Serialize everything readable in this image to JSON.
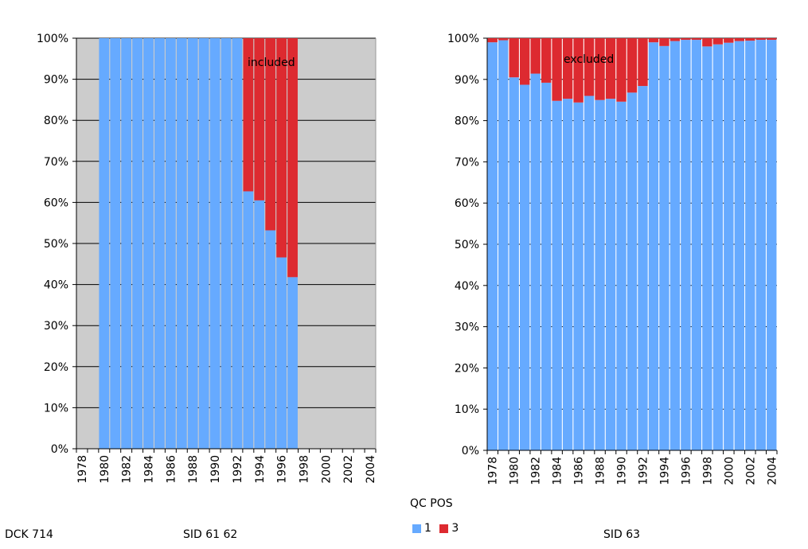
{
  "colors": {
    "qc1": "#66aaff",
    "qc3": "#dd2a30",
    "panel_left_bg": "#cccccc",
    "panel_right_bg": "#ffffff"
  },
  "legend": {
    "title": "QC POS",
    "items": [
      {
        "label": "1",
        "color": "#66aaff"
      },
      {
        "label": "3",
        "color": "#dd2a30"
      }
    ]
  },
  "footer": {
    "left": "DCK 714",
    "mid": "SID 61 62",
    "right": "SID 63"
  },
  "chart_data": [
    {
      "type": "bar",
      "stacked": true,
      "annotation": "included",
      "categories": [
        "1978",
        "1979",
        "1980",
        "1981",
        "1982",
        "1983",
        "1984",
        "1985",
        "1986",
        "1987",
        "1988",
        "1989",
        "1990",
        "1991",
        "1992",
        "1993",
        "1994",
        "1995",
        "1996",
        "1997",
        "1998",
        "1999",
        "2000",
        "2001",
        "2002",
        "2003",
        "2004"
      ],
      "tick_labels": [
        "1978",
        "1980",
        "1982",
        "1984",
        "1986",
        "1988",
        "1990",
        "1992",
        "1994",
        "1996",
        "1998",
        "2000",
        "2002",
        "2004"
      ],
      "y_ticks": [
        "0%",
        "10%",
        "20%",
        "30%",
        "40%",
        "50%",
        "60%",
        "70%",
        "80%",
        "90%",
        "100%"
      ],
      "ylim": [
        0,
        100
      ],
      "grid": true,
      "series": [
        {
          "name": "1",
          "values": [
            0,
            0,
            100,
            100,
            100,
            100,
            100,
            100,
            100,
            100,
            100,
            100,
            100,
            100,
            100,
            62.7,
            60.5,
            53.2,
            46.6,
            41.8,
            0,
            0,
            0,
            0,
            0,
            0,
            0
          ]
        },
        {
          "name": "3",
          "values": [
            0,
            0,
            0,
            0,
            0,
            0,
            0,
            0,
            0,
            0,
            0,
            0,
            0,
            0,
            0,
            37.3,
            39.5,
            46.8,
            53.4,
            58.2,
            0,
            0,
            0,
            0,
            0,
            0,
            0
          ]
        }
      ]
    },
    {
      "type": "bar",
      "stacked": true,
      "annotation": "excluded",
      "categories": [
        "1978",
        "1979",
        "1980",
        "1981",
        "1982",
        "1983",
        "1984",
        "1985",
        "1986",
        "1987",
        "1988",
        "1989",
        "1990",
        "1991",
        "1992",
        "1993",
        "1994",
        "1995",
        "1996",
        "1997",
        "1998",
        "1999",
        "2000",
        "2001",
        "2002",
        "2003",
        "2004"
      ],
      "tick_labels": [
        "1978",
        "1980",
        "1982",
        "1984",
        "1986",
        "1988",
        "1990",
        "1992",
        "1994",
        "1996",
        "1998",
        "2000",
        "2002",
        "2004"
      ],
      "y_ticks": [
        "0%",
        "10%",
        "20%",
        "30%",
        "40%",
        "50%",
        "60%",
        "70%",
        "80%",
        "90%",
        "100%"
      ],
      "ylim": [
        0,
        100
      ],
      "grid": true,
      "series": [
        {
          "name": "1",
          "values": [
            99.0,
            99.5,
            90.5,
            88.7,
            91.4,
            89.2,
            84.8,
            85.3,
            84.4,
            86.0,
            85.0,
            85.3,
            84.6,
            86.8,
            88.4,
            99.0,
            98.1,
            99.3,
            99.6,
            99.6,
            98.0,
            98.5,
            98.9,
            99.3,
            99.4,
            99.6,
            99.6
          ]
        },
        {
          "name": "3",
          "values": [
            1.0,
            0.5,
            9.5,
            11.3,
            8.6,
            10.8,
            15.2,
            14.7,
            15.6,
            14.0,
            15.0,
            14.7,
            15.4,
            13.2,
            11.6,
            1.0,
            1.9,
            0.7,
            0.4,
            0.4,
            2.0,
            1.5,
            1.1,
            0.7,
            0.6,
            0.4,
            0.4
          ]
        }
      ]
    }
  ]
}
